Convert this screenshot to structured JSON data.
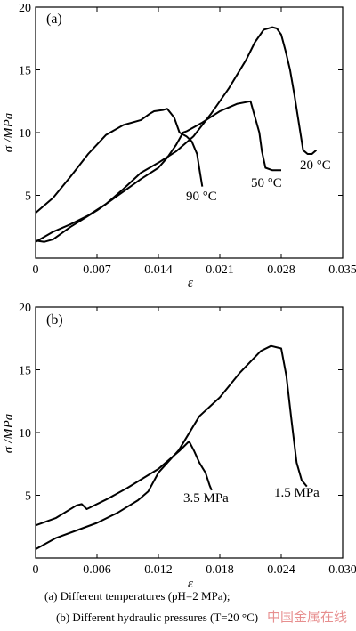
{
  "chart_data": [
    {
      "panel_label": "(a)",
      "type": "line",
      "xlabel": "ε",
      "ylabel": "σ /MPa",
      "xlim": [
        0,
        0.035
      ],
      "ylim": [
        0,
        20
      ],
      "xticks": [
        "0.007",
        "0.014",
        "0.021",
        "0.028",
        "0.035"
      ],
      "xtick_values": [
        0.007,
        0.014,
        0.021,
        0.028,
        0.035
      ],
      "yticks": [
        "5",
        "10",
        "15",
        "20"
      ],
      "ytick_values": [
        5,
        10,
        15,
        20
      ],
      "series": [
        {
          "name": "90 °C",
          "x": [
            0,
            0.002,
            0.004,
            0.006,
            0.008,
            0.01,
            0.012,
            0.013,
            0.0135,
            0.0145,
            0.015,
            0.0158,
            0.0164,
            0.0172,
            0.0178,
            0.0184,
            0.0187,
            0.019
          ],
          "y": [
            3.6,
            4.8,
            6.5,
            8.3,
            9.8,
            10.6,
            11.0,
            11.5,
            11.7,
            11.8,
            11.9,
            11.2,
            10.0,
            9.7,
            9.3,
            8.3,
            7.0,
            5.7
          ]
        },
        {
          "name": "50 °C",
          "x": [
            0,
            0.001,
            0.002,
            0.004,
            0.007,
            0.01,
            0.012,
            0.014,
            0.015,
            0.016,
            0.0168,
            0.0172,
            0.019,
            0.021,
            0.023,
            0.0245,
            0.0255,
            0.0258,
            0.0262,
            0.027,
            0.028
          ],
          "y": [
            1.4,
            1.3,
            1.5,
            2.5,
            3.8,
            5.3,
            6.3,
            7.2,
            8.0,
            9.0,
            10.0,
            10.1,
            10.8,
            11.7,
            12.3,
            12.5,
            10.0,
            8.5,
            7.2,
            7.0,
            7.0
          ]
        },
        {
          "name": "20 °C",
          "x": [
            0,
            0.002,
            0.004,
            0.006,
            0.008,
            0.01,
            0.012,
            0.014,
            0.016,
            0.018,
            0.02,
            0.022,
            0.024,
            0.025,
            0.026,
            0.027,
            0.0275,
            0.028,
            0.0285,
            0.029,
            0.0295,
            0.03,
            0.0305,
            0.031,
            0.0315,
            0.032
          ],
          "y": [
            1.3,
            2.1,
            2.7,
            3.4,
            4.3,
            5.5,
            6.8,
            7.6,
            8.5,
            9.7,
            11.5,
            13.5,
            15.8,
            17.2,
            18.2,
            18.4,
            18.3,
            17.8,
            16.5,
            15.0,
            13.0,
            10.8,
            8.6,
            8.3,
            8.3,
            8.6
          ]
        }
      ],
      "annotations": [
        {
          "text": "90 °C",
          "series": "90 °C"
        },
        {
          "text": "50 °C",
          "series": "50 °C"
        },
        {
          "text": "20 °C",
          "series": "20 °C"
        }
      ]
    },
    {
      "panel_label": "(b)",
      "type": "line",
      "xlabel": "ε",
      "ylabel": "σ /MPa",
      "xlim": [
        0,
        0.03
      ],
      "ylim": [
        0,
        20
      ],
      "xticks": [
        "0.006",
        "0.012",
        "0.018",
        "0.024",
        "0.030"
      ],
      "xtick_values": [
        0.006,
        0.012,
        0.018,
        0.024,
        0.03
      ],
      "yticks": [
        "5",
        "10",
        "15",
        "20"
      ],
      "ytick_values": [
        5,
        10,
        15,
        20
      ],
      "series": [
        {
          "name": "3.5 MPa",
          "x": [
            0,
            0.002,
            0.004,
            0.0045,
            0.005,
            0.007,
            0.009,
            0.011,
            0.012,
            0.013,
            0.014,
            0.0145,
            0.015,
            0.0155,
            0.016,
            0.0163,
            0.0166,
            0.0168,
            0.017,
            0.0172
          ],
          "y": [
            2.6,
            3.2,
            4.2,
            4.3,
            3.9,
            4.7,
            5.6,
            6.6,
            7.1,
            7.8,
            8.5,
            8.9,
            9.3,
            8.5,
            7.6,
            7.2,
            6.8,
            6.3,
            5.8,
            5.4
          ]
        },
        {
          "name": "1.5 MPa",
          "x": [
            0,
            0.002,
            0.004,
            0.006,
            0.008,
            0.01,
            0.011,
            0.012,
            0.014,
            0.016,
            0.018,
            0.02,
            0.022,
            0.023,
            0.024,
            0.0245,
            0.025,
            0.0255,
            0.026,
            0.0265
          ],
          "y": [
            0.7,
            1.6,
            2.2,
            2.8,
            3.6,
            4.6,
            5.3,
            6.8,
            8.6,
            11.3,
            12.8,
            14.8,
            16.5,
            16.9,
            16.7,
            14.5,
            11.0,
            7.6,
            6.2,
            5.7
          ]
        }
      ],
      "annotations": [
        {
          "text": "3.5 MPa",
          "series": "3.5 MPa"
        },
        {
          "text": "1.5 MPa",
          "series": "1.5 MPa"
        }
      ]
    }
  ],
  "caption": {
    "line_a": "(a)    Different    temperatures    (pH=2 MPa);",
    "line_b": "(b) Different hydraulic pressures (T=20 °C)"
  },
  "watermark": "中国金属在线"
}
